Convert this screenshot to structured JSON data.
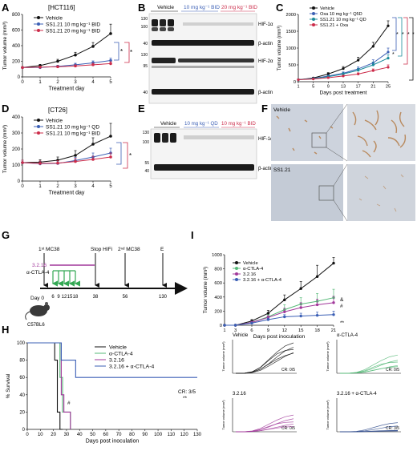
{
  "panels": {
    "A": {
      "letter": "A",
      "title": "[HCT116]",
      "ylabel": "Tumor volume (mm³)",
      "xlabel": "Treatment day",
      "legend": [
        "Vehicle",
        "SS1.21 10 mg kg⁻¹ BID",
        "SS1.21 20 mg kg⁻¹ BID"
      ],
      "sig_marks": [
        "*",
        "*"
      ]
    },
    "B": {
      "letter": "B",
      "groups": [
        "Vehicle",
        "10 mg kg⁻¹ BID",
        "20 mg kg⁻¹ BID"
      ],
      "bands": [
        "HIF-1α",
        "β-actin",
        "HIF-2α",
        "β-actin"
      ],
      "markers": [
        "130",
        "100",
        "40",
        "130",
        "95",
        "40"
      ]
    },
    "C": {
      "letter": "C",
      "ylabel": "Tumor volume (mm³)",
      "xlabel": "Days post treatment",
      "legend": [
        "Vehicle",
        "Oxa 10 mg kg⁻¹ Q5D",
        "SS1.21 10 mg kg⁻¹ QD",
        "SS1.21 + Oxa"
      ],
      "sig_marks": [
        "*",
        "*",
        "*",
        "*",
        "*"
      ]
    },
    "D": {
      "letter": "D",
      "title": "[CT26]",
      "ylabel": "Tumor volume (mm³)",
      "xlabel": "Treatment day",
      "legend": [
        "Vehicle",
        "SS1.21 10 mg kg⁻¹ QD",
        "SS1.21 10 mg kg⁻¹ BID"
      ],
      "sig_marks": [
        "*"
      ]
    },
    "E": {
      "letter": "E",
      "groups": [
        "Vehicle",
        "10 mg kg⁻¹ QD",
        "10 mg kg⁻¹ BID"
      ],
      "bands": [
        "HIF-1α",
        "β-actin"
      ],
      "markers": [
        "130",
        "100",
        "55",
        "40"
      ]
    },
    "F": {
      "letter": "F",
      "labels": [
        "Vehicle",
        "SS1.21"
      ]
    },
    "G": {
      "letter": "G",
      "labels": {
        "first_mc38": "1ˢᵗ MC38",
        "stop_hifi": "Stop HIFi",
        "second_mc38": "2ⁿᵈ MC38",
        "end": "E",
        "drug": "3.2.16",
        "antibody": "α-CTLA-4",
        "day0": "Day 0",
        "mouse": "C57BL6"
      },
      "ticks": [
        "6",
        "9",
        "12",
        "15",
        "18",
        "38",
        "56",
        "130"
      ]
    },
    "I": {
      "letter": "I",
      "ylabel": "Tumor volume (mm³)",
      "xlabel": "Days post inoculation",
      "legend": [
        "Vehicle",
        "α-CTLA-4",
        "3.2.16",
        "3.2.16 + α-CTLA-4"
      ],
      "marks": [
        "&",
        "#",
        "**"
      ]
    },
    "H": {
      "letter": "H",
      "ylabel": "% Survival",
      "xlabel": "Days post inoculation",
      "legend": [
        "Vehicle",
        "α-CTLA-4",
        "3.2.16",
        "3.2.16 + α-CTLA-4"
      ],
      "cr": "CR: 3/5",
      "marks": [
        "#",
        "**"
      ]
    },
    "small": {
      "ylabel": "Tumor volume (mm³)",
      "titles": [
        "Vehicle",
        "α-CTLA-4",
        "3.2.16",
        "3.2.16 + α-CTLA-4"
      ],
      "cr": [
        "CR: 0/5",
        "CR: 0/5",
        "CR: 0/5",
        "CR: 3/5"
      ]
    }
  },
  "colors": {
    "vehicle": "#111111",
    "blue": "#3b5fb5",
    "red": "#cc2c4a",
    "green": "#55b977",
    "purple": "#a1379a",
    "navy": "#2e4a8c",
    "teal": "#1a8a9a"
  },
  "chart_data": [
    {
      "type": "line",
      "panel": "A",
      "title": "[HCT116]",
      "xlabel": "Treatment day",
      "ylabel": "Tumor volume (mm³)",
      "x": [
        0,
        1,
        2,
        3,
        4,
        5
      ],
      "xlim": [
        0,
        5
      ],
      "ylim": [
        0,
        800
      ],
      "xticks": [
        0,
        1,
        2,
        3,
        4,
        5
      ],
      "yticks": [
        0,
        200,
        400,
        600,
        800
      ],
      "series": [
        {
          "name": "Vehicle",
          "color": "#111111",
          "values": [
            120,
            145,
            200,
            280,
            390,
            555
          ],
          "err": [
            10,
            15,
            25,
            35,
            50,
            120
          ]
        },
        {
          "name": "SS1.21 10 mg kg⁻¹ BID",
          "color": "#3b5fb5",
          "values": [
            120,
            120,
            135,
            155,
            180,
            210
          ],
          "err": [
            10,
            10,
            15,
            20,
            25,
            30
          ]
        },
        {
          "name": "SS1.21 20 mg kg⁻¹ BID",
          "color": "#cc2c4a",
          "values": [
            120,
            125,
            130,
            140,
            155,
            170
          ],
          "err": [
            10,
            10,
            12,
            15,
            20,
            25
          ]
        }
      ]
    },
    {
      "type": "line",
      "panel": "C",
      "xlabel": "Days post treatment",
      "ylabel": "Tumor volume (mm³)",
      "x": [
        1,
        5,
        9,
        13,
        17,
        21,
        25
      ],
      "xlim": [
        1,
        25
      ],
      "ylim": [
        0,
        2000
      ],
      "xticks": [
        1,
        5,
        9,
        13,
        17,
        21,
        25
      ],
      "yticks": [
        0,
        500,
        1000,
        1500,
        2000
      ],
      "series": [
        {
          "name": "Vehicle",
          "color": "#111111",
          "values": [
            60,
            110,
            230,
            390,
            640,
            1050,
            1660
          ],
          "err": [
            10,
            20,
            40,
            60,
            90,
            120,
            150
          ]
        },
        {
          "name": "Oxa 10 mg kg⁻¹ Q5D",
          "color": "#3b5fb5",
          "values": [
            60,
            95,
            170,
            250,
            380,
            560,
            880
          ],
          "err": [
            10,
            15,
            25,
            40,
            60,
            90,
            120
          ]
        },
        {
          "name": "SS1.21 10 mg kg⁻¹ QD",
          "color": "#1a8a9a",
          "values": [
            60,
            90,
            150,
            230,
            340,
            500,
            700
          ],
          "err": [
            10,
            15,
            20,
            35,
            50,
            80,
            100
          ]
        },
        {
          "name": "SS1.21 + Oxa",
          "color": "#cc2c4a",
          "values": [
            60,
            80,
            120,
            170,
            230,
            330,
            430
          ],
          "err": [
            10,
            10,
            15,
            25,
            35,
            50,
            70
          ]
        }
      ]
    },
    {
      "type": "line",
      "panel": "D",
      "title": "[CT26]",
      "xlabel": "Treatment day",
      "ylabel": "Tumor volume (mm³)",
      "x": [
        0,
        1,
        2,
        3,
        4,
        5
      ],
      "xlim": [
        0,
        5
      ],
      "ylim": [
        0,
        400
      ],
      "xticks": [
        0,
        1,
        2,
        3,
        4,
        5
      ],
      "yticks": [
        0,
        100,
        200,
        300,
        400
      ],
      "series": [
        {
          "name": "Vehicle",
          "color": "#111111",
          "values": [
            115,
            118,
            130,
            160,
            230,
            280
          ],
          "err": [
            15,
            15,
            20,
            30,
            40,
            80
          ]
        },
        {
          "name": "SS1.21 10 mg kg⁻¹ QD",
          "color": "#3b5fb5",
          "values": [
            115,
            108,
            110,
            128,
            150,
            175
          ],
          "err": [
            15,
            15,
            15,
            20,
            25,
            30
          ]
        },
        {
          "name": "SS1.21 10 mg kg⁻¹ BID",
          "color": "#cc2c4a",
          "values": [
            115,
            110,
            112,
            122,
            135,
            150
          ],
          "err": [
            15,
            15,
            15,
            20,
            20,
            25
          ]
        }
      ]
    },
    {
      "type": "line",
      "panel": "I",
      "xlabel": "Days post inoculation",
      "ylabel": "Tumor volume (mm³)",
      "x": [
        1,
        3,
        6,
        9,
        12,
        15,
        18,
        21
      ],
      "xlim": [
        1,
        21
      ],
      "ylim": [
        0,
        1000
      ],
      "xticks": [
        1,
        3,
        6,
        9,
        12,
        15,
        18,
        21
      ],
      "yticks": [
        0,
        200,
        400,
        600,
        800,
        1000
      ],
      "series": [
        {
          "name": "Vehicle",
          "color": "#111111",
          "values": [
            0,
            0,
            60,
            170,
            360,
            520,
            690,
            880
          ],
          "err": [
            0,
            0,
            20,
            40,
            70,
            100,
            160,
            80
          ]
        },
        {
          "name": "α-CTLA-4",
          "color": "#55b977",
          "values": [
            0,
            0,
            40,
            120,
            220,
            300,
            340,
            390
          ],
          "err": [
            0,
            0,
            15,
            30,
            70,
            90,
            110,
            120
          ]
        },
        {
          "name": "3.2.16",
          "color": "#a1379a",
          "values": [
            0,
            0,
            40,
            110,
            190,
            250,
            290,
            320
          ],
          "err": [
            0,
            0,
            15,
            25,
            50,
            70,
            80,
            90
          ]
        },
        {
          "name": "3.2.16 + α-CTLA-4",
          "color": "#3b5fb5",
          "values": [
            0,
            0,
            30,
            80,
            120,
            130,
            140,
            150
          ],
          "err": [
            0,
            0,
            10,
            20,
            30,
            40,
            45,
            50
          ]
        }
      ]
    },
    {
      "type": "line",
      "panel": "H",
      "subtype": "survival-step",
      "xlabel": "Days post inoculation",
      "ylabel": "% Survival",
      "xlim": [
        0,
        130
      ],
      "ylim": [
        0,
        100
      ],
      "xticks": [
        0,
        10,
        20,
        30,
        40,
        50,
        60,
        70,
        80,
        90,
        100,
        110,
        120,
        130
      ],
      "yticks": [
        0,
        20,
        40,
        60,
        80,
        100
      ],
      "series": [
        {
          "name": "Vehicle",
          "color": "#111111",
          "x": [
            0,
            21,
            21,
            23,
            23,
            25,
            25,
            27,
            27
          ],
          "values": [
            100,
            100,
            80,
            80,
            20,
            20,
            0,
            0,
            0
          ]
        },
        {
          "name": "α-CTLA-4",
          "color": "#55b977",
          "x": [
            0,
            25,
            25,
            27,
            27,
            31,
            31,
            33,
            33
          ],
          "values": [
            100,
            100,
            60,
            60,
            20,
            20,
            20,
            20,
            0
          ]
        },
        {
          "name": "3.2.16",
          "color": "#a1379a",
          "x": [
            0,
            26,
            26,
            28,
            28,
            33,
            33
          ],
          "values": [
            100,
            100,
            40,
            40,
            20,
            20,
            0
          ]
        },
        {
          "name": "3.2.16 + α-CTLA-4",
          "color": "#3b5fb5",
          "x": [
            0,
            26,
            26,
            37,
            37,
            130
          ],
          "values": [
            100,
            100,
            80,
            80,
            60,
            60
          ]
        }
      ]
    }
  ]
}
